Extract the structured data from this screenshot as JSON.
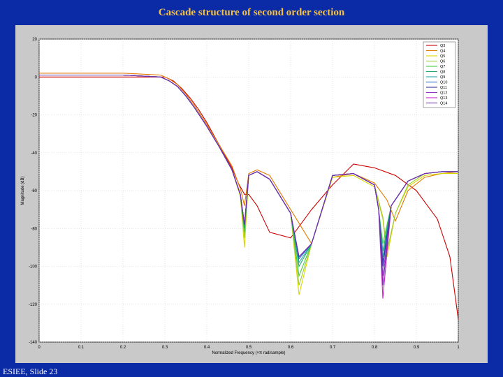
{
  "slide": {
    "title": "Cascade structure of second order section",
    "footer": "ESIEE, Slide 23"
  },
  "chart_data": {
    "type": "line",
    "title": "",
    "xlabel": "Normalized Frequency (×π rad/sample)",
    "ylabel": "Magnitude (dB)",
    "xlim": [
      0,
      1
    ],
    "ylim": [
      -140,
      20
    ],
    "xticks": [
      0,
      0.1,
      0.2,
      0.3,
      0.4,
      0.5,
      0.6,
      0.7,
      0.8,
      0.9,
      1
    ],
    "xtick_labels": [
      "0",
      "0.1",
      "0.2",
      "0.3",
      "0.4",
      "0.5",
      "0.6",
      "0.7",
      "0.8",
      "0.9",
      "1"
    ],
    "yticks": [
      20,
      0,
      -20,
      -40,
      -60,
      -80,
      -100,
      -120,
      -140
    ],
    "ytick_labels": [
      "20",
      "0",
      "-20",
      "-40",
      "-60",
      "-80",
      "-100",
      "-120",
      "-140"
    ],
    "grid": true,
    "legend_position": "top-right",
    "series": [
      {
        "name": "Q3",
        "color": "#cc0000",
        "x": [
          0,
          0.1,
          0.2,
          0.28,
          0.3,
          0.32,
          0.34,
          0.36,
          0.38,
          0.4,
          0.42,
          0.44,
          0.46,
          0.475,
          0.49,
          0.5,
          0.52,
          0.55,
          0.6,
          0.65,
          0.7,
          0.75,
          0.8,
          0.85,
          0.9,
          0.95,
          0.98,
          1.0
        ],
        "y": [
          0,
          0,
          0,
          0,
          0,
          -2,
          -6,
          -11,
          -17,
          -24,
          -32,
          -40,
          -48,
          -56,
          -62,
          -62,
          -68,
          -82,
          -85,
          -70,
          -57,
          -46,
          -48,
          -52,
          -60,
          -75,
          -95,
          -128
        ]
      },
      {
        "name": "Q4",
        "color": "#e07a00",
        "x": [
          0,
          0.1,
          0.2,
          0.29,
          0.31,
          0.33,
          0.35,
          0.37,
          0.4,
          0.43,
          0.46,
          0.48,
          0.49,
          0.5,
          0.52,
          0.55,
          0.6,
          0.65,
          0.7,
          0.75,
          0.8,
          0.83,
          0.85,
          0.88,
          0.92,
          0.96,
          1.0
        ],
        "y": [
          2,
          2,
          2,
          1,
          -1,
          -4,
          -9,
          -15,
          -25,
          -36,
          -47,
          -59,
          -68,
          -51,
          -49,
          -52,
          -70,
          -88,
          -53,
          -51,
          -56,
          -65,
          -76,
          -60,
          -53,
          -51,
          -50
        ]
      },
      {
        "name": "Q5",
        "color": "#d8d800",
        "x": [
          0,
          0.1,
          0.2,
          0.29,
          0.31,
          0.33,
          0.35,
          0.37,
          0.4,
          0.43,
          0.46,
          0.48,
          0.49,
          0.5,
          0.52,
          0.55,
          0.6,
          0.62,
          0.65,
          0.7,
          0.75,
          0.8,
          0.82,
          0.83,
          0.85,
          0.88,
          0.92,
          0.96,
          1.0
        ],
        "y": [
          1,
          1,
          1,
          0,
          -2,
          -5,
          -10,
          -16,
          -26,
          -37,
          -49,
          -63,
          -90,
          -52,
          -50,
          -54,
          -72,
          -115,
          -88,
          -53,
          -52,
          -58,
          -75,
          -95,
          -72,
          -58,
          -52,
          -51,
          -51
        ]
      },
      {
        "name": "Q6",
        "color": "#9acd32",
        "x": [
          0,
          0.1,
          0.2,
          0.29,
          0.31,
          0.33,
          0.35,
          0.37,
          0.4,
          0.43,
          0.46,
          0.48,
          0.49,
          0.5,
          0.52,
          0.55,
          0.6,
          0.62,
          0.65,
          0.7,
          0.75,
          0.8,
          0.82,
          0.83,
          0.85,
          0.88,
          0.92,
          0.96,
          1.0
        ],
        "y": [
          1,
          1,
          1,
          0,
          -2,
          -5,
          -10,
          -16,
          -26,
          -37,
          -49,
          -62,
          -85,
          -52,
          -50,
          -54,
          -72,
          -110,
          -88,
          -52,
          -51,
          -57,
          -74,
          -92,
          -72,
          -57,
          -51,
          -50,
          -50
        ]
      },
      {
        "name": "Q7",
        "color": "#44cc44",
        "x": [
          0,
          0.1,
          0.2,
          0.29,
          0.31,
          0.33,
          0.35,
          0.37,
          0.4,
          0.43,
          0.46,
          0.48,
          0.49,
          0.5,
          0.52,
          0.55,
          0.6,
          0.62,
          0.65,
          0.7,
          0.75,
          0.8,
          0.81,
          0.82,
          0.84,
          0.88,
          0.92,
          0.96,
          1.0
        ],
        "y": [
          1,
          1,
          1,
          0,
          -2,
          -5,
          -10,
          -16,
          -26,
          -37,
          -49,
          -62,
          -82,
          -52,
          -50,
          -54,
          -72,
          -105,
          -88,
          -52,
          -51,
          -57,
          -70,
          -88,
          -68,
          -55,
          -51,
          -50,
          -50
        ]
      },
      {
        "name": "Q8",
        "color": "#22aa66",
        "x": [
          0,
          0.1,
          0.2,
          0.29,
          0.31,
          0.33,
          0.35,
          0.37,
          0.4,
          0.43,
          0.46,
          0.48,
          0.49,
          0.5,
          0.52,
          0.55,
          0.6,
          0.62,
          0.65,
          0.7,
          0.75,
          0.8,
          0.81,
          0.82,
          0.84,
          0.88,
          0.92,
          0.96,
          1.0
        ],
        "y": [
          1,
          1,
          1,
          0,
          -2,
          -5,
          -10,
          -16,
          -26,
          -37,
          -49,
          -62,
          -80,
          -52,
          -50,
          -54,
          -72,
          -100,
          -88,
          -52,
          -51,
          -57,
          -70,
          -92,
          -68,
          -55,
          -51,
          -50,
          -50
        ]
      },
      {
        "name": "Q9",
        "color": "#22aaaa",
        "x": [
          0,
          0.1,
          0.2,
          0.29,
          0.31,
          0.33,
          0.35,
          0.37,
          0.4,
          0.43,
          0.46,
          0.48,
          0.49,
          0.5,
          0.52,
          0.55,
          0.6,
          0.62,
          0.65,
          0.7,
          0.75,
          0.8,
          0.81,
          0.82,
          0.84,
          0.88,
          0.92,
          0.96,
          1.0
        ],
        "y": [
          1,
          1,
          1,
          0,
          -2,
          -5,
          -10,
          -16,
          -26,
          -37,
          -49,
          -62,
          -78,
          -52,
          -50,
          -54,
          -72,
          -98,
          -88,
          -52,
          -51,
          -57,
          -70,
          -95,
          -68,
          -55,
          -51,
          -50,
          -50
        ]
      },
      {
        "name": "Q10",
        "color": "#2266cc",
        "x": [
          0,
          0.1,
          0.2,
          0.29,
          0.31,
          0.33,
          0.35,
          0.37,
          0.4,
          0.43,
          0.46,
          0.48,
          0.49,
          0.5,
          0.52,
          0.55,
          0.6,
          0.62,
          0.65,
          0.7,
          0.75,
          0.8,
          0.81,
          0.82,
          0.84,
          0.88,
          0.92,
          0.96,
          1.0
        ],
        "y": [
          1,
          1,
          1,
          0,
          -2,
          -5,
          -10,
          -16,
          -26,
          -37,
          -49,
          -62,
          -78,
          -52,
          -50,
          -54,
          -72,
          -96,
          -88,
          -52,
          -51,
          -57,
          -70,
          -98,
          -68,
          -55,
          -51,
          -50,
          -50
        ]
      },
      {
        "name": "Q11",
        "color": "#333399",
        "x": [
          0,
          0.1,
          0.2,
          0.29,
          0.31,
          0.33,
          0.35,
          0.37,
          0.4,
          0.43,
          0.46,
          0.48,
          0.49,
          0.5,
          0.52,
          0.55,
          0.6,
          0.62,
          0.65,
          0.7,
          0.75,
          0.8,
          0.81,
          0.82,
          0.84,
          0.88,
          0.92,
          0.96,
          1.0
        ],
        "y": [
          1,
          1,
          1,
          0,
          -2,
          -5,
          -10,
          -16,
          -26,
          -37,
          -49,
          -62,
          -78,
          -52,
          -50,
          -54,
          -72,
          -95,
          -88,
          -52,
          -51,
          -57,
          -70,
          -100,
          -68,
          -55,
          -51,
          -50,
          -50
        ]
      },
      {
        "name": "Q12",
        "color": "#9933cc",
        "x": [
          0,
          0.1,
          0.2,
          0.29,
          0.31,
          0.33,
          0.35,
          0.37,
          0.4,
          0.43,
          0.46,
          0.48,
          0.49,
          0.5,
          0.52,
          0.55,
          0.6,
          0.62,
          0.65,
          0.7,
          0.75,
          0.8,
          0.81,
          0.82,
          0.84,
          0.88,
          0.92,
          0.96,
          1.0
        ],
        "y": [
          1,
          1,
          1,
          0,
          -2,
          -5,
          -10,
          -16,
          -26,
          -37,
          -49,
          -62,
          -78,
          -52,
          -50,
          -54,
          -72,
          -95,
          -88,
          -52,
          -51,
          -57,
          -70,
          -105,
          -68,
          -55,
          -51,
          -50,
          -50
        ]
      },
      {
        "name": "Q13",
        "color": "#cc22cc",
        "x": [
          0,
          0.1,
          0.2,
          0.29,
          0.31,
          0.33,
          0.35,
          0.37,
          0.4,
          0.43,
          0.46,
          0.48,
          0.49,
          0.5,
          0.52,
          0.55,
          0.6,
          0.62,
          0.65,
          0.7,
          0.75,
          0.8,
          0.81,
          0.82,
          0.84,
          0.88,
          0.92,
          0.96,
          1.0
        ],
        "y": [
          1,
          1,
          1,
          0,
          -2,
          -5,
          -10,
          -16,
          -26,
          -37,
          -49,
          -62,
          -78,
          -52,
          -50,
          -54,
          -72,
          -95,
          -88,
          -52,
          -51,
          -57,
          -70,
          -117,
          -68,
          -55,
          -51,
          -50,
          -50
        ]
      },
      {
        "name": "Q14",
        "color": "#6633aa",
        "x": [
          0,
          0.1,
          0.2,
          0.29,
          0.31,
          0.33,
          0.35,
          0.37,
          0.4,
          0.43,
          0.46,
          0.48,
          0.49,
          0.5,
          0.52,
          0.55,
          0.6,
          0.62,
          0.65,
          0.7,
          0.75,
          0.8,
          0.81,
          0.82,
          0.84,
          0.88,
          0.92,
          0.96,
          1.0
        ],
        "y": [
          1,
          1,
          1,
          0,
          -2,
          -5,
          -10,
          -16,
          -26,
          -37,
          -49,
          -62,
          -78,
          -52,
          -50,
          -54,
          -72,
          -95,
          -88,
          -52,
          -51,
          -57,
          -70,
          -110,
          -68,
          -55,
          -51,
          -50,
          -50
        ]
      }
    ]
  }
}
